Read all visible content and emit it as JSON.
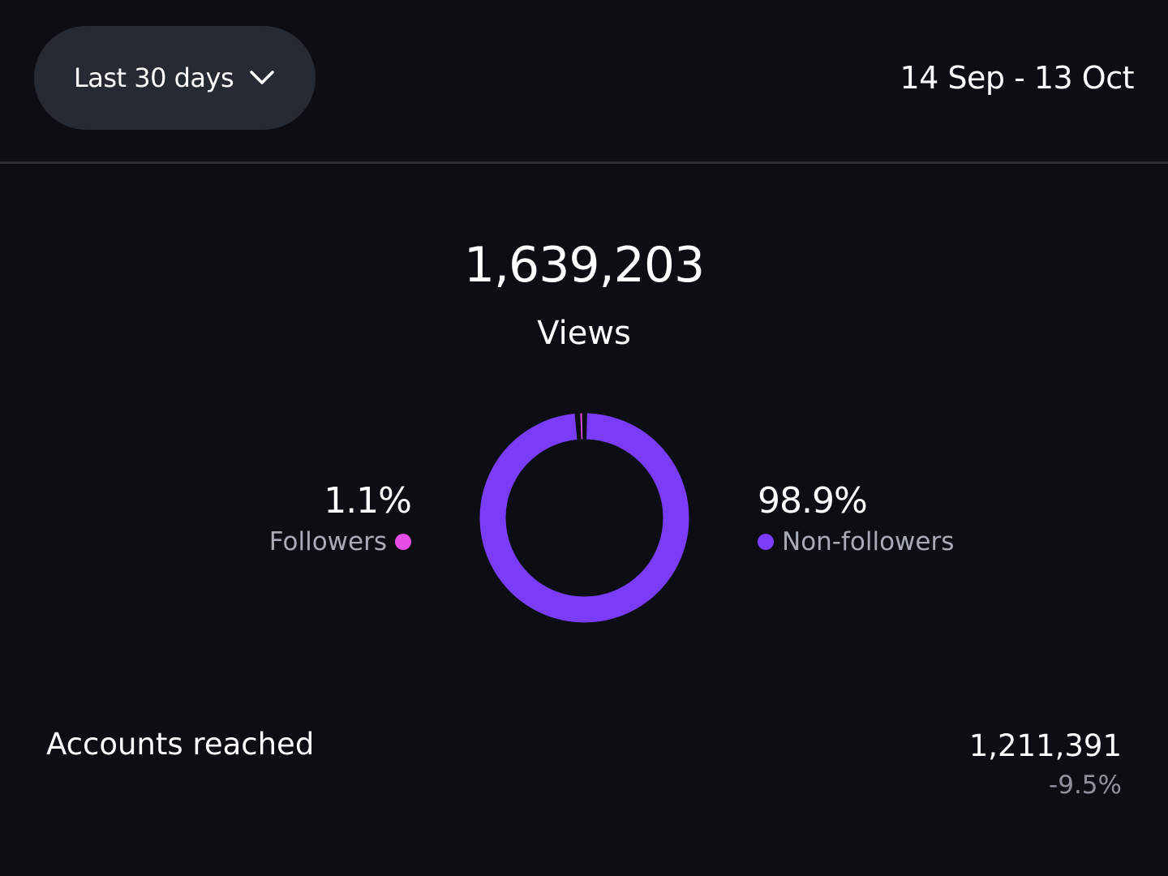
{
  "header": {
    "range_label": "Last 30 days",
    "range_icon": "chevron-down-icon",
    "date_range": "14 Sep - 13 Oct"
  },
  "views": {
    "total": "1,639,203",
    "label": "Views"
  },
  "chart_data": {
    "type": "pie",
    "categories": [
      "Followers",
      "Non-followers"
    ],
    "values": [
      1.1,
      98.9
    ],
    "value_labels": [
      "1.1%",
      "98.9%"
    ],
    "colors": [
      "#e84de8",
      "#7a3cf6"
    ],
    "style": "donut"
  },
  "breakdown": {
    "followers": {
      "pct": "1.1%",
      "label": "Followers",
      "color": "#e84de8"
    },
    "nonfollowers": {
      "pct": "98.9%",
      "label": "Non-followers",
      "color": "#7a3cf6"
    }
  },
  "accounts": {
    "label": "Accounts reached",
    "value": "1,211,391",
    "change": "-9.5%"
  }
}
